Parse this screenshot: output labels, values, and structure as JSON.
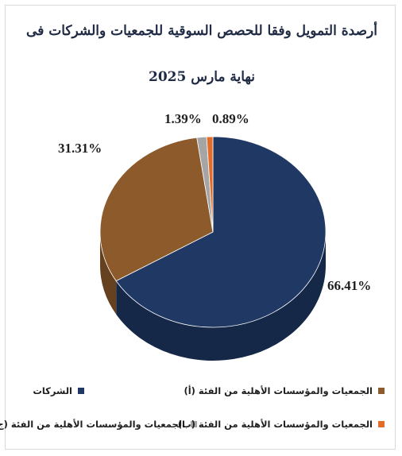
{
  "chart_data": {
    "type": "pie",
    "title_line1": "أرصدة التمويل وفقا للحصص السوقية للجمعيات والشركات فى",
    "title_line2": "نهاية مارس 2025",
    "slices": [
      {
        "name": "الشركات",
        "value": 66.41,
        "label": "66.41%",
        "color": "#1f3864"
      },
      {
        "name": "الجمعيات والمؤسسات الأهلية من الفئة (أ)",
        "value": 31.31,
        "label": "31.31%",
        "color": "#8c5a2b"
      },
      {
        "name": "الجمعيات والمؤسسات الأهلية من الفئة (ج)",
        "value": 1.39,
        "label": "1.39%",
        "color": "#a5a5a5"
      },
      {
        "name": "الجمعيات والمؤسسات الأهلية من الفئة (ب)",
        "value": 0.89,
        "label": "0.89%",
        "color": "#e46c2a"
      }
    ],
    "legend_placement": "bottom"
  }
}
